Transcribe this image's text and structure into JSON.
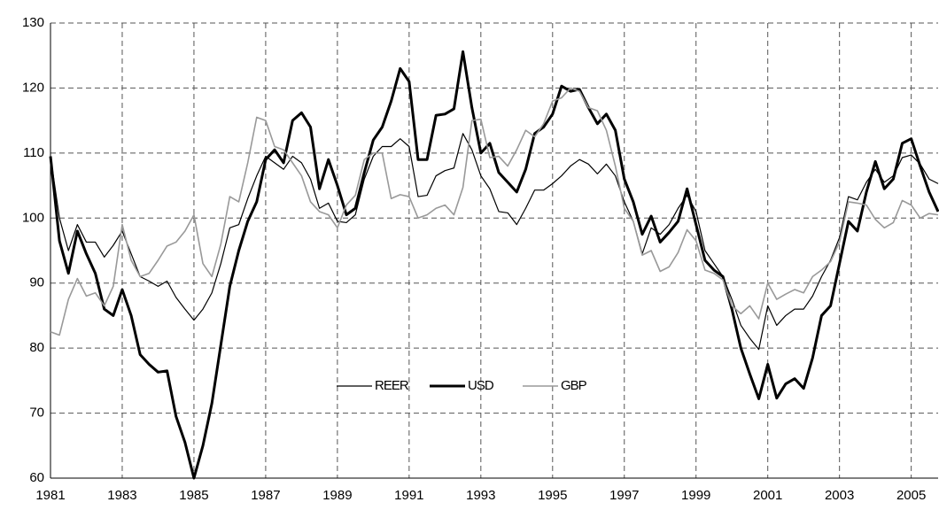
{
  "chart_data": {
    "type": "line",
    "x": [
      1981,
      1981.25,
      1981.5,
      1981.75,
      1982,
      1982.25,
      1982.5,
      1982.75,
      1983,
      1983.25,
      1983.5,
      1983.75,
      1984,
      1984.25,
      1984.5,
      1984.75,
      1985,
      1985.25,
      1985.5,
      1985.75,
      1986,
      1986.25,
      1986.5,
      1986.75,
      1987,
      1987.25,
      1987.5,
      1987.75,
      1988,
      1988.25,
      1988.5,
      1988.75,
      1989,
      1989.25,
      1989.5,
      1989.75,
      1990,
      1990.25,
      1990.5,
      1990.75,
      1991,
      1991.25,
      1991.5,
      1991.75,
      1992,
      1992.25,
      1992.5,
      1992.75,
      1993,
      1993.25,
      1993.5,
      1993.75,
      1994,
      1994.25,
      1994.5,
      1994.75,
      1995,
      1995.25,
      1995.5,
      1995.75,
      1996,
      1996.25,
      1996.5,
      1996.75,
      1997,
      1997.25,
      1997.5,
      1997.75,
      1998,
      1998.25,
      1998.5,
      1998.75,
      1999,
      1999.25,
      1999.5,
      1999.75,
      2000,
      2000.25,
      2000.5,
      2000.75,
      2001,
      2001.25,
      2001.5,
      2001.75,
      2002,
      2002.25,
      2002.5,
      2002.75,
      2003,
      2003.25,
      2003.5,
      2003.75,
      2004,
      2004.25,
      2004.5,
      2004.75,
      2005,
      2005.25,
      2005.5,
      2005.75
    ],
    "series": [
      {
        "name": "REER",
        "color": "#000000",
        "width": 1.2,
        "values": [
          109.5,
          100,
          95,
          99,
          96.3,
          96.3,
          94,
          95.8,
          98,
          94.5,
          91,
          90.3,
          89.5,
          90.3,
          87.8,
          86,
          84.3,
          86,
          88.5,
          93,
          98.5,
          99,
          103,
          106.5,
          109.5,
          108.5,
          107.5,
          109.5,
          108.5,
          106,
          101.5,
          102.3,
          99.5,
          99.3,
          100.5,
          106,
          109.5,
          111,
          111,
          112.2,
          111,
          103.3,
          103.5,
          106.5,
          107.3,
          107.7,
          113,
          110.5,
          106.5,
          104.5,
          101,
          100.8,
          99,
          101.5,
          104.3,
          104.3,
          105.3,
          106.5,
          108,
          109,
          108.3,
          106.8,
          108.3,
          106.5,
          102.5,
          99.5,
          94.5,
          98.5,
          97.5,
          99,
          101.5,
          103.5,
          101,
          95,
          93,
          91,
          87.5,
          83.5,
          81.5,
          79.8,
          86.5,
          83.5,
          85,
          86,
          86,
          88,
          91,
          93.5,
          97,
          103.3,
          102.8,
          105.5,
          107.5,
          105.5,
          106.5,
          109.3,
          109.7,
          108.3,
          106,
          105.3
        ]
      },
      {
        "name": "USD",
        "color": "#000000",
        "width": 3,
        "values": [
          109.5,
          96.5,
          91.5,
          98,
          94.5,
          91.5,
          86,
          85,
          89,
          85,
          79,
          77.5,
          76.3,
          76.5,
          69.5,
          65.5,
          60,
          65,
          71.5,
          80.5,
          89.5,
          95,
          99.5,
          102.5,
          109,
          110.5,
          108.5,
          115,
          116.2,
          114,
          104.5,
          109,
          105,
          100.5,
          101.5,
          107,
          112,
          114,
          118,
          123,
          121,
          109,
          109,
          115.8,
          116,
          116.8,
          125.6,
          117,
          110,
          111.5,
          107,
          105.5,
          104,
          107.5,
          113,
          114,
          116,
          120.3,
          119.5,
          119.8,
          117,
          114.5,
          116,
          113.5,
          106,
          102.5,
          97.5,
          100.3,
          96.3,
          97.8,
          99.5,
          104.5,
          99,
          93.5,
          92,
          91,
          86,
          80,
          76,
          72.2,
          77.5,
          72.3,
          74.5,
          75.3,
          73.8,
          78.5,
          85,
          86.5,
          93,
          99.5,
          98,
          104,
          108.7,
          104.5,
          106,
          111.5,
          112.2,
          108,
          104,
          101
        ]
      },
      {
        "name": "GBP",
        "color": "#999999",
        "width": 1.6,
        "values": [
          82.5,
          82,
          87.5,
          90.7,
          88,
          88.5,
          86.5,
          89.5,
          99,
          93.5,
          91,
          91.5,
          93.5,
          95.7,
          96.3,
          98,
          100.5,
          93,
          91,
          96,
          103.3,
          102.5,
          108.5,
          115.5,
          115,
          111,
          110.5,
          108.5,
          106.5,
          102.5,
          101,
          100.5,
          98.5,
          102,
          103.5,
          109,
          110,
          110,
          103,
          103.6,
          103.3,
          100,
          100.5,
          101.5,
          102,
          100.5,
          104.7,
          115,
          115.2,
          109.3,
          109.5,
          108,
          110.5,
          113.5,
          112.5,
          114.5,
          118,
          118.5,
          120,
          119.5,
          117,
          116.5,
          113.5,
          108,
          101.5,
          99.5,
          94.3,
          95,
          91.8,
          92.5,
          94.7,
          98.2,
          96.5,
          92,
          91.5,
          90.5,
          86.5,
          85.3,
          86.5,
          84.5,
          90,
          87.5,
          88.3,
          89,
          88.5,
          91,
          92,
          93.3,
          96.3,
          102.5,
          102.3,
          102,
          99.8,
          98.5,
          99.3,
          102.7,
          102,
          100,
          100.7,
          100.5
        ]
      }
    ],
    "xlim": [
      1981,
      2005.75
    ],
    "xticks": [
      1981,
      1983,
      1985,
      1987,
      1989,
      1991,
      1993,
      1995,
      1997,
      1999,
      2001,
      2003,
      2005
    ],
    "ylim": [
      60,
      130
    ],
    "yticks": [
      60,
      70,
      80,
      90,
      100,
      110,
      120,
      130
    ],
    "grid": true,
    "legend": "center"
  }
}
